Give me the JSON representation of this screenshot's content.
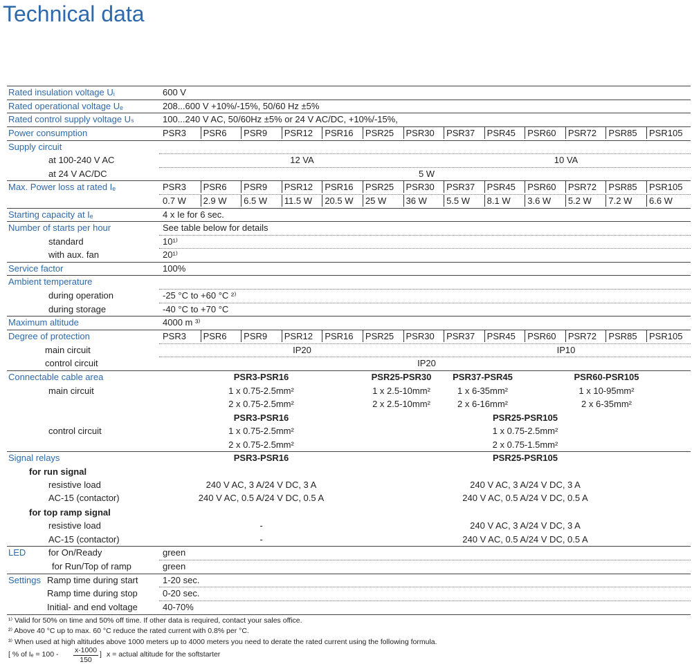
{
  "title": "Technical data",
  "rows": [
    {
      "label": "Rated insulation voltage Uᵢ",
      "cells": [
        "600 V"
      ]
    },
    {
      "label": "Rated operational voltage Uₑ",
      "cells": [
        "208...600 V +10%/-15%, 50/60 Hz ±5%"
      ]
    },
    {
      "label": "Rated control supply voltage Uₛ",
      "cells": [
        "100...240 V AC, 50/60Hz ±5% or 24 V AC/DC, +10%/-15%,"
      ]
    },
    {
      "label": "Power consumption",
      "cells": [
        "PSR3",
        "PSR6",
        "PSR9",
        "PSR12",
        "PSR16",
        "PSR25",
        "PSR30",
        "PSR37",
        "PSR45",
        "PSR60",
        "PSR72",
        "PSR85",
        "PSR105"
      ]
    },
    {
      "label": "Supply circuit"
    },
    {
      "label": "at 100-240 V AC",
      "cells": [
        "12 VA",
        "10 VA"
      ]
    },
    {
      "label": "at 24 V AC/DC",
      "cells": [
        "5 W"
      ]
    },
    {
      "label": "Max. Power loss at rated Iₑ",
      "cells": [
        "PSR3",
        "PSR6",
        "PSR9",
        "PSR12",
        "PSR16",
        "PSR25",
        "PSR30",
        "PSR37",
        "PSR45",
        "PSR60",
        "PSR72",
        "PSR85",
        "PSR105"
      ]
    },
    {
      "cells": [
        "0.7 W",
        "2.9 W",
        "6.5 W",
        "11.5 W",
        "20.5 W",
        "25 W",
        "36 W",
        "5.5 W",
        "8.1 W",
        "3.6 W",
        "5.2 W",
        "7.2 W",
        "6.6 W"
      ]
    },
    {
      "label": "Starting capacity at Iₑ",
      "cells": [
        "4 x Ie for 6 sec."
      ]
    },
    {
      "label": "Number of starts per hour",
      "cells": [
        "See table below for details"
      ]
    },
    {
      "label": "standard",
      "cells": [
        "10¹⁾"
      ]
    },
    {
      "label": "with aux. fan",
      "cells": [
        "20¹⁾"
      ]
    },
    {
      "label": "Service factor",
      "cells": [
        "100%"
      ]
    },
    {
      "label": "Ambient temperature"
    },
    {
      "label": "during operation",
      "cells": [
        "-25 °C to +60 °C ²⁾"
      ]
    },
    {
      "label": "during storage",
      "cells": [
        "-40 °C to +70 °C"
      ]
    },
    {
      "label": "Maximum altitude",
      "cells": [
        "4000 m ³⁾"
      ]
    },
    {
      "label": "Degree of protection",
      "cells": [
        "PSR3",
        "PSR6",
        "PSR9",
        "PSR12",
        "PSR16",
        "PSR25",
        "PSR30",
        "PSR37",
        "PSR45",
        "PSR60",
        "PSR72",
        "PSR85",
        "PSR105"
      ]
    },
    {
      "label": "main circuit",
      "cells": [
        "IP20",
        "IP10"
      ]
    },
    {
      "label": "control circuit",
      "cells": [
        "IP20"
      ]
    },
    {
      "label": "Connectable cable area",
      "cells": [
        "PSR3-PSR16",
        "PSR25-PSR30",
        "PSR37-PSR45",
        "PSR60-PSR105"
      ]
    },
    {
      "label": "main circuit",
      "cells": [
        "1 x 0.75-2.5mm²",
        "1 x 2.5-10mm²",
        "1 x 6-35mm²",
        "1 x 10-95mm²"
      ]
    },
    {
      "cells": [
        "2 x 0.75-2.5mm²",
        "2 x 2.5-10mm²",
        "2 x 6-16mm²",
        "2 x 6-35mm²"
      ]
    },
    {
      "cells": [
        "PSR3-PSR16",
        "PSR25-PSR105"
      ]
    },
    {
      "label": "control circuit",
      "cells": [
        "1 x 0.75-2.5mm²",
        "1 x 0.75-2.5mm²"
      ]
    },
    {
      "cells": [
        "2 x 0.75-2.5mm²",
        "2 x 0.75-1.5mm²"
      ]
    },
    {
      "label": "Signal relays",
      "cells": [
        "PSR3-PSR16",
        "PSR25-PSR105"
      ]
    },
    {
      "label": "for run signal"
    },
    {
      "label": "resistive load",
      "cells": [
        "240 V AC, 3 A/24 V DC, 3 A",
        "240 V AC, 3 A/24 V DC, 3 A"
      ]
    },
    {
      "label": "AC-15 (contactor)",
      "cells": [
        "240 V AC, 0.5 A/24 V DC, 0.5 A",
        "240 V AC, 0.5 A/24 V DC, 0.5 A"
      ]
    },
    {
      "label": "for top ramp signal"
    },
    {
      "label": "resistive load",
      "cells": [
        "-",
        "240 V AC, 3 A/24 V DC, 3 A"
      ]
    },
    {
      "label": "AC-15 (contactor)",
      "cells": [
        "-",
        "240 V AC, 0.5 A/24 V DC, 0.5 A"
      ]
    },
    {
      "group": "LED",
      "label": "for On/Ready",
      "cells": [
        "green"
      ]
    },
    {
      "label": "for Run/Top of ramp",
      "cells": [
        "green"
      ]
    },
    {
      "group": "Settings",
      "label": "Ramp time during start",
      "cells": [
        "1-20 sec."
      ]
    },
    {
      "label": "Ramp time during stop",
      "cells": [
        "0-20 sec."
      ]
    },
    {
      "label": "Initial- and end voltage",
      "cells": [
        "40-70%"
      ]
    }
  ],
  "footnotes": [
    "¹⁾ Valid for 50% on time and 50% off time. If other data is required, contact your sales office.",
    "²⁾ Above 40 °C up to max. 60 °C reduce the rated current with 0.8% per °C.",
    "³⁾ When used at high altitudes above 1000 meters up to 4000 meters you need to derate the rated current using the following formula."
  ],
  "formula": {
    "left": "[ % of Iₑ = 100 -",
    "numerator": "x-1000",
    "denominator": "150",
    "right": "]",
    "note": "x = actual altitude for the softstarter"
  }
}
